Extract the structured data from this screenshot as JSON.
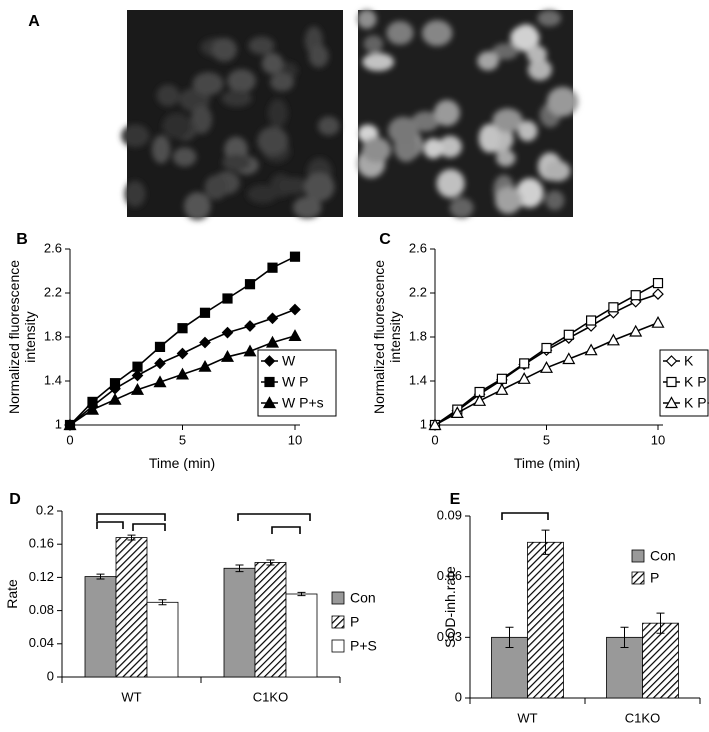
{
  "images": {
    "label": "A"
  },
  "chart_data": [
    {
      "type": "line",
      "label": "B",
      "xlabel": "Time (min)",
      "ylabel": "Normalized fluorescence intensity",
      "x": [
        0,
        1,
        2,
        3,
        4,
        5,
        6,
        7,
        8,
        9,
        10
      ],
      "xlim": [
        0,
        10
      ],
      "xticks": [
        0,
        5,
        10
      ],
      "ylim": [
        1,
        2.6
      ],
      "yticks": [
        1,
        1.4,
        1.8,
        2.2,
        2.6
      ],
      "marker_fill": true,
      "series": [
        {
          "name": "W",
          "color": "#000000",
          "marker": "diamond",
          "values": [
            1,
            1.17,
            1.33,
            1.45,
            1.56,
            1.65,
            1.75,
            1.84,
            1.9,
            1.97,
            2.05
          ]
        },
        {
          "name": "W P",
          "color": "#000000",
          "marker": "square",
          "values": [
            1,
            1.21,
            1.38,
            1.53,
            1.71,
            1.88,
            2.02,
            2.15,
            2.28,
            2.43,
            2.53
          ]
        },
        {
          "name": "W P+s",
          "color": "#000000",
          "marker": "triangle",
          "values": [
            1,
            1.14,
            1.23,
            1.32,
            1.39,
            1.46,
            1.53,
            1.62,
            1.67,
            1.75,
            1.81
          ]
        }
      ]
    },
    {
      "type": "line",
      "label": "C",
      "xlabel": "Time (min)",
      "ylabel": "Normalized fluorescence intensity",
      "x": [
        0,
        1,
        2,
        3,
        4,
        5,
        6,
        7,
        8,
        9,
        10
      ],
      "xlim": [
        0,
        10
      ],
      "xticks": [
        0,
        5,
        10
      ],
      "ylim": [
        1,
        2.6
      ],
      "yticks": [
        1,
        1.4,
        1.8,
        2.2,
        2.6
      ],
      "marker_fill": false,
      "series": [
        {
          "name": "K",
          "color": "#000000",
          "marker": "diamond",
          "values": [
            1,
            1.13,
            1.28,
            1.41,
            1.55,
            1.68,
            1.79,
            1.9,
            2.02,
            2.12,
            2.19
          ]
        },
        {
          "name": "K P",
          "color": "#000000",
          "marker": "square",
          "values": [
            1,
            1.14,
            1.3,
            1.42,
            1.56,
            1.7,
            1.82,
            1.95,
            2.07,
            2.18,
            2.29
          ]
        },
        {
          "name": "K P+s",
          "color": "#000000",
          "marker": "triangle",
          "values": [
            1,
            1.11,
            1.22,
            1.32,
            1.42,
            1.52,
            1.6,
            1.68,
            1.77,
            1.85,
            1.93
          ]
        }
      ]
    },
    {
      "type": "bar",
      "label": "D",
      "ylabel": "Rate",
      "categories": [
        "WT",
        "C1KO"
      ],
      "ylim": [
        0,
        0.2
      ],
      "yticks": [
        0,
        0.04,
        0.08,
        0.12,
        0.16,
        0.2
      ],
      "series": [
        {
          "name": "Con",
          "color": "#999999",
          "hatch": false,
          "values": [
            0.121,
            0.131
          ],
          "errors": [
            0.003,
            0.004
          ]
        },
        {
          "name": "P",
          "color": "#ffffff",
          "hatch": true,
          "values": [
            0.168,
            0.138
          ],
          "errors": [
            0.003,
            0.003
          ]
        },
        {
          "name": "P+S",
          "color": "#ffffff",
          "hatch": false,
          "values": [
            0.09,
            0.1
          ],
          "errors": [
            0.003,
            0.002
          ]
        }
      ]
    },
    {
      "type": "bar",
      "label": "E",
      "ylabel": "SOD-inh.rate",
      "categories": [
        "WT",
        "C1KO"
      ],
      "ylim": [
        0,
        0.09
      ],
      "yticks": [
        0,
        0.03,
        0.06,
        0.09
      ],
      "series": [
        {
          "name": "Con",
          "color": "#999999",
          "hatch": false,
          "values": [
            0.03,
            0.03
          ],
          "errors": [
            0.005,
            0.005
          ]
        },
        {
          "name": "P",
          "color": "#ffffff",
          "hatch": true,
          "values": [
            0.077,
            0.037
          ],
          "errors": [
            0.006,
            0.005
          ]
        }
      ]
    }
  ]
}
